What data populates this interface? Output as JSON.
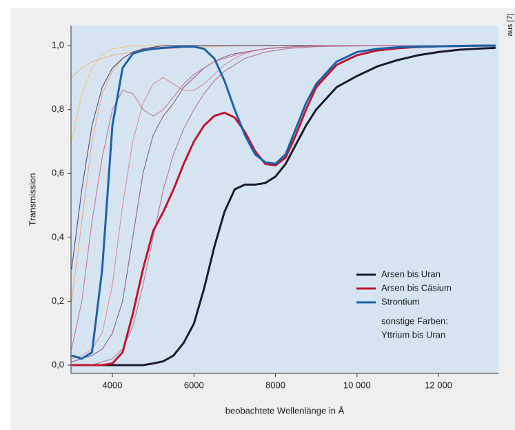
{
  "chart_data": {
    "type": "line",
    "source": "aus [7]",
    "xlabel": "beobachtete Wellenlänge in Å",
    "ylabel": "Transmission",
    "xlim": [
      2985,
      13470
    ],
    "ylim": [
      -0.026,
      1.063
    ],
    "xticks": [
      4000,
      6000,
      8000,
      {
        "value": 10000,
        "label": "10 000"
      },
      {
        "value": 12000,
        "label": "12 000"
      }
    ],
    "yticks": [
      {
        "value": 0,
        "label": "0,0"
      },
      {
        "value": 0.2,
        "label": "0,2"
      },
      {
        "value": 0.4,
        "label": "0,4"
      },
      {
        "value": 0.6,
        "label": "0,6"
      },
      {
        "value": 0.8,
        "label": "0,8"
      },
      {
        "value": 1,
        "label": "1,0"
      }
    ],
    "legend_position": "lower right",
    "legend_note": [
      "sonstige Farben:",
      "Yttrium bis Uran"
    ],
    "x": [
      3000,
      3250,
      3500,
      3750,
      4000,
      4250,
      4500,
      4750,
      5000,
      5250,
      5500,
      5750,
      6000,
      6250,
      6500,
      6750,
      7000,
      7250,
      7500,
      7750,
      8000,
      8250,
      8500,
      8750,
      9000,
      9500,
      10000,
      10500,
      11000,
      11500,
      12000,
      12500,
      13000,
      13400
    ],
    "series": [
      {
        "color": "#f3c46f",
        "values": [
          0.7,
          0.85,
          0.93,
          0.97,
          0.99,
          0.995,
          1,
          1,
          1,
          1,
          1,
          1,
          1,
          1,
          1,
          1,
          1,
          1,
          1,
          1,
          1,
          1,
          1,
          1,
          1,
          1,
          1,
          1,
          1,
          1,
          1,
          1,
          1,
          1
        ]
      },
      {
        "color": "#eda56f",
        "values": [
          0.2,
          0.45,
          0.7,
          0.85,
          0.92,
          0.96,
          0.98,
          0.99,
          0.995,
          1,
          1,
          1,
          1,
          1,
          1,
          1,
          1,
          1,
          1,
          1,
          1,
          1,
          1,
          1,
          1,
          1,
          1,
          1,
          1,
          1,
          1,
          1,
          1,
          1
        ]
      },
      {
        "color": "#f0b47c",
        "values": [
          0.9,
          0.93,
          0.95,
          0.96,
          0.97,
          0.975,
          0.98,
          0.985,
          0.988,
          0.99,
          0.992,
          0.994,
          0.995,
          0.996,
          0.997,
          0.998,
          0.999,
          1,
          1,
          1,
          1,
          1,
          1,
          1,
          1,
          1,
          1,
          1,
          1,
          1,
          1,
          1,
          1,
          1
        ]
      },
      {
        "color": "#d98a8a",
        "values": [
          0.02,
          0.03,
          0.05,
          0.1,
          0.25,
          0.5,
          0.7,
          0.82,
          0.88,
          0.9,
          0.88,
          0.86,
          0.86,
          0.88,
          0.91,
          0.94,
          0.96,
          0.975,
          0.985,
          0.99,
          0.993,
          0.995,
          0.997,
          0.998,
          0.999,
          1,
          1,
          1,
          1,
          1,
          1,
          1,
          1,
          1
        ]
      },
      {
        "color": "#b46a8c",
        "values": [
          0,
          0,
          0,
          0.01,
          0.02,
          0.05,
          0.12,
          0.25,
          0.4,
          0.55,
          0.66,
          0.74,
          0.8,
          0.85,
          0.89,
          0.92,
          0.94,
          0.96,
          0.97,
          0.98,
          0.985,
          0.99,
          0.993,
          0.995,
          0.997,
          0.998,
          0.999,
          1,
          1,
          1,
          1,
          1,
          1,
          1
        ]
      },
      {
        "color": "#4d3a66",
        "values": [
          0.3,
          0.55,
          0.75,
          0.87,
          0.93,
          0.96,
          0.98,
          0.99,
          0.995,
          1,
          1,
          1,
          1,
          1,
          1,
          1,
          1,
          1,
          1,
          1,
          1,
          1,
          1,
          1,
          1,
          1,
          1,
          1,
          1,
          1,
          1,
          1,
          1,
          1
        ]
      },
      {
        "color": "#8a4f86",
        "values": [
          0.01,
          0.02,
          0.03,
          0.05,
          0.1,
          0.2,
          0.4,
          0.6,
          0.72,
          0.78,
          0.82,
          0.87,
          0.9,
          0.93,
          0.95,
          0.965,
          0.975,
          0.98,
          0.985,
          0.99,
          0.993,
          0.995,
          0.997,
          0.998,
          0.999,
          1,
          1,
          1,
          1,
          1,
          1,
          1,
          1,
          1
        ]
      },
      {
        "color": "#c47082",
        "values": [
          0.05,
          0.2,
          0.45,
          0.65,
          0.8,
          0.86,
          0.85,
          0.8,
          0.78,
          0.8,
          0.84,
          0.88,
          0.91,
          0.93,
          0.95,
          0.96,
          0.97,
          0.978,
          0.985,
          0.99,
          0.993,
          0.995,
          0.997,
          0.998,
          0.999,
          1,
          1,
          1,
          1,
          1,
          1,
          1,
          1,
          1
        ]
      },
      {
        "name": "Arsen bis Uran",
        "color": "#1b1b2b",
        "values": [
          0,
          0,
          0,
          0,
          0,
          0,
          0,
          0,
          0.005,
          0.012,
          0.03,
          0.07,
          0.13,
          0.24,
          0.37,
          0.48,
          0.55,
          0.565,
          0.565,
          0.57,
          0.59,
          0.63,
          0.69,
          0.75,
          0.8,
          0.87,
          0.905,
          0.935,
          0.955,
          0.97,
          0.98,
          0.987,
          0.991,
          0.993
        ]
      },
      {
        "name": "Arsen bis Cäsium",
        "color": "#c0152f",
        "values": [
          0,
          0,
          0,
          0,
          0.005,
          0.04,
          0.16,
          0.3,
          0.42,
          0.48,
          0.55,
          0.63,
          0.7,
          0.75,
          0.78,
          0.79,
          0.775,
          0.73,
          0.67,
          0.63,
          0.625,
          0.65,
          0.72,
          0.8,
          0.87,
          0.94,
          0.97,
          0.985,
          0.992,
          0.996,
          0.998,
          0.999,
          1,
          1
        ]
      },
      {
        "name": "Strontium",
        "color": "#1a62a8",
        "values": [
          0.03,
          0.02,
          0.04,
          0.3,
          0.75,
          0.93,
          0.975,
          0.985,
          0.99,
          0.993,
          0.995,
          0.997,
          0.997,
          0.99,
          0.96,
          0.89,
          0.8,
          0.72,
          0.66,
          0.635,
          0.63,
          0.66,
          0.74,
          0.82,
          0.88,
          0.95,
          0.98,
          0.99,
          0.995,
          0.997,
          0.998,
          0.999,
          1,
          1
        ]
      }
    ]
  }
}
